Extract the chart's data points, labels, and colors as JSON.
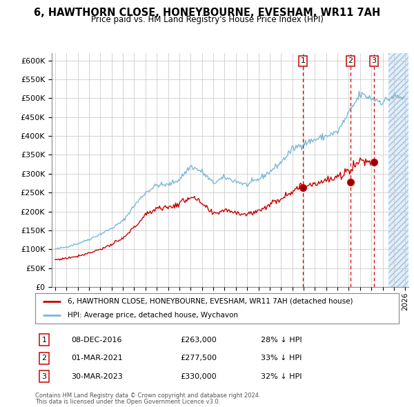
{
  "title_line1": "6, HAWTHORN CLOSE, HONEYBOURNE, EVESHAM, WR11 7AH",
  "title_line2": "Price paid vs. HM Land Registry's House Price Index (HPI)",
  "ylim": [
    0,
    620000
  ],
  "yticks": [
    0,
    50000,
    100000,
    150000,
    200000,
    250000,
    300000,
    350000,
    400000,
    450000,
    500000,
    550000,
    600000
  ],
  "ytick_labels": [
    "£0",
    "£50K",
    "£100K",
    "£150K",
    "£200K",
    "£250K",
    "£300K",
    "£350K",
    "£400K",
    "£450K",
    "£500K",
    "£550K",
    "£600K"
  ],
  "hpi_color": "#7ab8d8",
  "price_color": "#cc0000",
  "vline_color": "#cc0000",
  "background_color": "#ffffff",
  "grid_color": "#cccccc",
  "future_bg_color": "#ddeeff",
  "legend_label_red": "6, HAWTHORN CLOSE, HONEYBOURNE, EVESHAM, WR11 7AH (detached house)",
  "legend_label_blue": "HPI: Average price, detached house, Wychavon",
  "sales": [
    {
      "num": 1,
      "date_label": "08-DEC-2016",
      "price_label": "£263,000",
      "pct_label": "28% ↓ HPI",
      "x_year": 2016.93,
      "y_val": 263000
    },
    {
      "num": 2,
      "date_label": "01-MAR-2021",
      "price_label": "£277,500",
      "pct_label": "33% ↓ HPI",
      "x_year": 2021.16,
      "y_val": 277500
    },
    {
      "num": 3,
      "date_label": "30-MAR-2023",
      "price_label": "£330,000",
      "pct_label": "32% ↓ HPI",
      "x_year": 2023.24,
      "y_val": 330000
    }
  ],
  "footnote_line1": "Contains HM Land Registry data © Crown copyright and database right 2024.",
  "footnote_line2": "This data is licensed under the Open Government Licence v3.0.",
  "hatch_color": "#aabbcc",
  "future_start_year": 2024.5,
  "xlim_start": 1994.7,
  "xlim_end": 2026.3,
  "hpi_base": {
    "1995": 100000,
    "1996": 106000,
    "1997": 115000,
    "1998": 126000,
    "1999": 140000,
    "2000": 155000,
    "2001": 175000,
    "2002": 215000,
    "2003": 250000,
    "2004": 270000,
    "2005": 270000,
    "2006": 285000,
    "2007": 320000,
    "2008": 305000,
    "2009": 275000,
    "2010": 290000,
    "2011": 280000,
    "2012": 270000,
    "2013": 285000,
    "2014": 305000,
    "2015": 330000,
    "2016": 365000,
    "2017": 380000,
    "2018": 390000,
    "2019": 400000,
    "2020": 410000,
    "2021": 460000,
    "2022": 510000,
    "2023": 500000,
    "2024": 490000,
    "2025": 505000,
    "2026": 500000
  },
  "price_base": {
    "1995": 72000,
    "1996": 76000,
    "1997": 82000,
    "1998": 90000,
    "1999": 100000,
    "2000": 112000,
    "2001": 128000,
    "2002": 158000,
    "2003": 190000,
    "2004": 210000,
    "2005": 210000,
    "2006": 220000,
    "2007": 240000,
    "2008": 220000,
    "2009": 192000,
    "2010": 205000,
    "2011": 198000,
    "2012": 192000,
    "2013": 202000,
    "2014": 218000,
    "2015": 235000,
    "2016": 255000,
    "2017": 268000,
    "2018": 275000,
    "2019": 282000,
    "2020": 288000,
    "2021": 310000,
    "2022": 335000,
    "2023": 332000
  }
}
